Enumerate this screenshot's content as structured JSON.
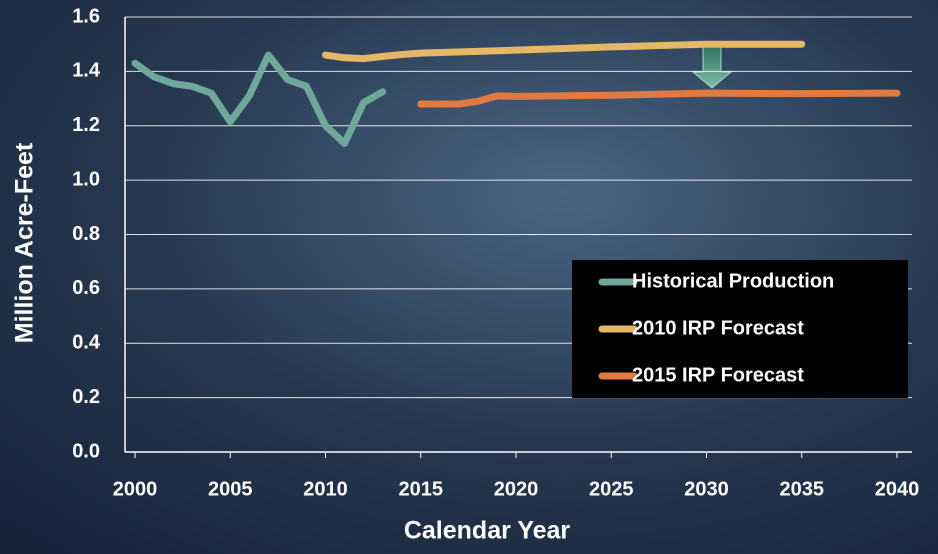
{
  "chart_data": {
    "type": "line",
    "xlabel": "Calendar Year",
    "ylabel": "Million Acre-Feet",
    "series": [
      {
        "name": "Historical Production",
        "color": "#6fa89a",
        "x": [
          2000,
          2001,
          2002,
          2003,
          2004,
          2005,
          2006,
          2007,
          2008,
          2009,
          2010,
          2011,
          2012,
          2013
        ],
        "values": [
          1.43,
          1.38,
          1.355,
          1.345,
          1.32,
          1.215,
          1.31,
          1.46,
          1.37,
          1.345,
          1.2,
          1.135,
          1.285,
          1.325
        ]
      },
      {
        "name": "2010 IRP Forecast",
        "color": "#e4b866",
        "x": [
          2010,
          2011,
          2012,
          2013,
          2014,
          2015,
          2020,
          2025,
          2030,
          2035
        ],
        "values": [
          1.46,
          1.45,
          1.447,
          1.455,
          1.462,
          1.467,
          1.478,
          1.49,
          1.5,
          1.5
        ]
      },
      {
        "name": "2015 IRP Forecast",
        "color": "#e07a40",
        "x": [
          2015,
          2016,
          2017,
          2018,
          2019,
          2020,
          2025,
          2030,
          2035,
          2040
        ],
        "values": [
          1.28,
          1.28,
          1.28,
          1.29,
          1.31,
          1.308,
          1.312,
          1.32,
          1.318,
          1.32
        ]
      }
    ],
    "xlim": [
      2000,
      2040
    ],
    "xticks": [
      2000,
      2005,
      2010,
      2015,
      2020,
      2025,
      2030,
      2035,
      2040
    ],
    "ylim": [
      0,
      1.6
    ],
    "yticks": [
      {
        "value": 0,
        "label": "0.0"
      },
      0.2,
      0.4,
      0.6,
      0.8,
      {
        "value": 1,
        "label": "1.0"
      },
      1.2,
      1.4,
      1.6
    ],
    "grid": true,
    "legend": "lower right"
  }
}
